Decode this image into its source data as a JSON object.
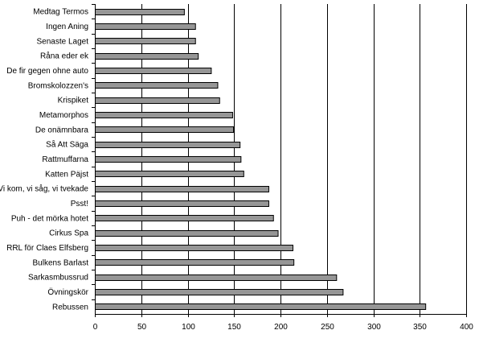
{
  "chart_data": {
    "type": "bar",
    "orientation": "horizontal",
    "categories": [
      "Medtag Termos",
      "Ingen Aning",
      "Senaste Laget",
      "Råna eder ek",
      "De fir gegen ohne auto",
      "Bromskolozzen's",
      "Krispiket",
      "Metamorphos",
      "De onämnbara",
      "Så Att Säga",
      "Rattmuffarna",
      "Katten Päjst",
      "Vi kom, vi såg, vi tvekade",
      "Psst!",
      "Puh - det mörka hotet",
      "Cirkus Spa",
      "RRL för Claes Elfsberg",
      "Bulkens Barlast",
      "Sarkasmbussrud",
      "Övningskör",
      "Rebussen"
    ],
    "values": [
      96,
      108,
      108,
      111,
      125,
      132,
      134,
      148,
      149,
      156,
      157,
      160,
      187,
      187,
      192,
      197,
      213,
      214,
      260,
      267,
      356
    ],
    "xlim": [
      0,
      400
    ],
    "xticks": [
      "0",
      "50",
      "100",
      "150",
      "200",
      "250",
      "300",
      "350",
      "400"
    ],
    "grid": "vertical",
    "legend": "none",
    "bar_color": "#969696",
    "bar_edge_color": "#000000",
    "grid_color": "#000000"
  }
}
